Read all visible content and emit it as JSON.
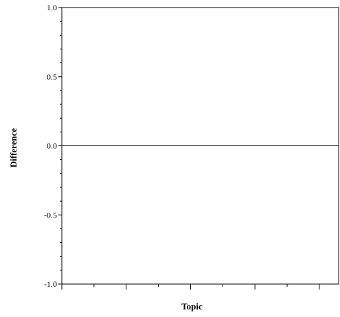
{
  "chart_data": {
    "type": "line",
    "title": "",
    "xlabel": "Topic",
    "ylabel": "Difference",
    "ylim": [
      -1.0,
      1.0
    ],
    "y_ticks": [
      {
        "value": -1.0,
        "label": "-1.0"
      },
      {
        "value": -0.5,
        "label": "-0.5"
      },
      {
        "value": 0.0,
        "label": "0.0"
      },
      {
        "value": 0.5,
        "label": "0.5"
      },
      {
        "value": 1.0,
        "label": "1.0"
      }
    ],
    "y_minor_step": 0.1,
    "x_tick_count": 5,
    "x_minor_per_interval": 1,
    "grid": false,
    "series": [
      {
        "x": [
          0,
          1
        ],
        "y": [
          0.0,
          0.0
        ]
      }
    ],
    "colors": {
      "axis": "#000000",
      "line": "#000000"
    }
  }
}
